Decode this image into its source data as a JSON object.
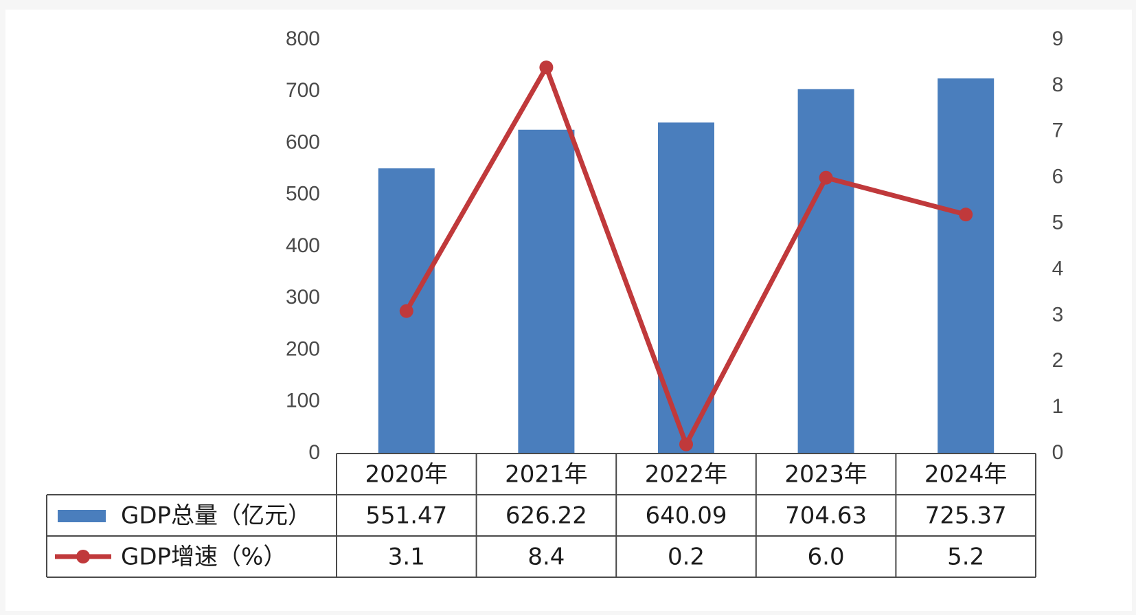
{
  "chart_data": {
    "type": "bar",
    "categories": [
      "2020年",
      "2021年",
      "2022年",
      "2023年",
      "2024年"
    ],
    "series": [
      {
        "name": "GDP总量（亿元）",
        "type": "bar",
        "axis": "left",
        "color": "#4a7ebd",
        "values": [
          551.47,
          626.22,
          640.09,
          704.63,
          725.37
        ],
        "labels": [
          "551.47",
          "626.22",
          "640.09",
          "704.63",
          "725.37"
        ]
      },
      {
        "name": "GDP增速（%）",
        "type": "line",
        "axis": "right",
        "color": "#c0393b",
        "values": [
          3.1,
          8.4,
          0.2,
          6.0,
          5.2
        ],
        "labels": [
          "3.1",
          "8.4",
          "0.2",
          "6.0",
          "5.2"
        ]
      }
    ],
    "y_left": {
      "ylim": [
        0,
        800
      ],
      "ticks": [
        "0",
        "100",
        "200",
        "300",
        "400",
        "500",
        "600",
        "700",
        "800"
      ]
    },
    "y_right": {
      "ylim": [
        0,
        9
      ],
      "ticks": [
        "0",
        "1",
        "2",
        "3",
        "4",
        "5",
        "6",
        "7",
        "8",
        "9"
      ]
    },
    "grid": false,
    "legend": "data-table-below"
  }
}
